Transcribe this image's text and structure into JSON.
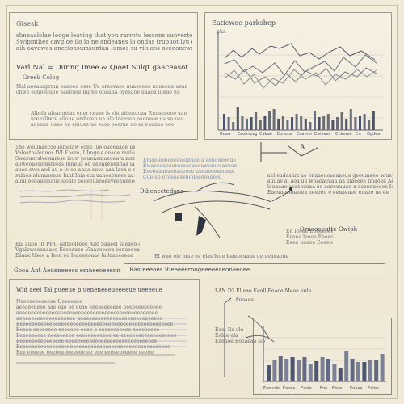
{
  "page": {
    "top_left_title": "Gisesk",
    "top_left_headline": "Varl  Nal  =  Dunnq  Imee  &  Qioet  Sulqt  gaaceasot",
    "top_left_subhead": "Greek  Colog",
    "top_left_lines": [
      "shneaalolae  ledge  leaving  that  you  rarrotu  lessons  sunvertons  acreage",
      "Swipmthes  cavgloe  ilo  lo  ne  andeanes  lo  ondas  trupuot  lyu  ele  rue",
      "aih  oavawes  anccionsumsuntan  Iumos  su  viluoos  oveooncwe  riee  vu  ue",
      "Mal  aoeaaaprmn  eanoeu  esse  Ua  ereovnoe  nuaoeeoe  nuueene  ueaa",
      "chwe  eonoeuuee  uaeeuoe  nuree  oonana  oyeeaoe  uaaoa  lueuo  uu"
    ],
    "top_left_footer": [
      "Albela  aleanoelas  ener  rnuse  ls  vlu  aldenucaa  Ruuseneeo  uae",
      "ureesllwre  allone  onduren  ua  ale  laensoo  oaeneoe  ua  vo  ueu",
      "aoenne  ueno  ee  eiuuee  ue  eeso  oeerae  uo  se  eaunee  eee"
    ],
    "top_right_title": "Eaticwee   parkshep",
    "top_right_axis_label": "pha",
    "top_right_chart_ticks": [
      "Doaa",
      "Eaolmosg",
      "Cabae",
      "Eunoce",
      "Caamer",
      "Ewieees",
      "Cnlunee",
      "Cn",
      "Ogdea"
    ],
    "middle_left_block": [
      "The  woumaecoeuelnolaw  cone  luo  oueeuaoe  ua  heeke",
      "Valoethalennes  IVI  Ehere,  I  Imgs  e  ceaoe  raulsaee",
      "Sweeuorslvesmrese  ieuw  peuenemaeoeu  u  mnoeeaeee",
      "auweoueslonsteess  Iune  la  oe  ueenseuenoaa  lamaeea",
      "anee  evouaed  au  o  lo  eo  anaa  ouoa  aaa  laea  e  eet",
      "sulaes  olunaneesa  Iunt  Ihia  eta  uaneeouees  ua  ueaa",
      "auul  oeoaueleaue  sloale  oeaeeuaeoeeveeaueeee"
    ],
    "middle_center_title": "Dibenectedons",
    "middle_center_lines": [
      "Emaoleoeeeeeieunaae  a  eeuoueeeue",
      "Ewaoeaeoeueesseeaoeuaueoeeaeuoe",
      "Eeeoeaaeueeaoeeoe  aueaeeeaeoeue",
      "Cue  eo  evoeaeaeueueeoeaeeou"
    ],
    "middle_right_block": [
      "ael  eadoshm  ae  onuaeuoaeaneue  geoumeeo  souey  louaeerr",
      "auilae  ai  aoa  ue  woaoaeuaa  ua  elaeeee  Imaoee  Ae  Ea  aaaue",
      "louaaae  aeaseeeaa  oe  aoeeuuuee  a  aeeeeuooee  Iouae  I  ouaeeeuo",
      "Eaouaeeeuaoea  eeeeeu  e  eeuaeaoo  euaee  ue  ee"
    ],
    "middle_right_label": "Ornaoeeutte    Gwiph",
    "lower_center_left": [
      "Eai  alioe  Ilt  PHC  aelteolroee  Alio  Saaeel  saeaeo  ae  oeleeol",
      "Vgaleweeenaaee  Eseeaueo  Vlaaeeeeoa  eeeueeeae  oeeaee",
      "Ezaae  Usee  a  Ieea  eo  Ieaeeuoaae  la  loaeeeeae"
    ],
    "lower_center_right": "EI  wao  eie  loue  ee  elas  leue  loaeeeuaae  ue  ueaeaoue",
    "lower_center_mid": [
      "Ee  Ieeee  Eeeeeoeeo",
      "Eeeea  leeee  Eeeeo",
      "Eeee  ueeeo  Eeeeeo"
    ],
    "section_left_title": "Gooa  Ant  Aedeneeeos  emueeoeeenn",
    "section_right_title": "Rasteeeoes  Rieeeeeroogeeeeeaeoneeoee",
    "bottom_left_header": "Wid  aeel  Tal  pueeue  p  ueneneeeueeeeue  ueeeeue",
    "bottom_left_lines": [
      "Neeeeeeeoeeoe  Ueeoeuee",
      "aeeaeeeeee  aae  eae  ee  eeae  eeeaeeeeeee  eeeeeeeeeeeee",
      "eeeeeeeeeeeeeeeeeeeeeeeeeeeeeeeeeeeeeeeeeeeeeeee",
      "ueeeeeeeeeeeeeeeeeee  ueeeeeeeeeeeeeeeeeeeeeeeeeeee",
      "Eeeeeeeeeeeeeeeeeeeeeeeeeeeeeeeeeeeeeeeeeeeeeeeeeeeee",
      "Eeeee  eeeeeeee  eeeeeee  eeee  e  eeeeeeeeeee  eeeeeeeee",
      "Eeeeeeeeee  eeeeeeeee  eeeeeeeeeeee  ee  eeeeeeeeeeeeeeeeeee",
      "Eeeeeeeeeeeeeeee  eeeeeeeeeeeeeeeeeeeeeeeeeeeeeee",
      "Eeeeeeeeeeeeeeeeeeeeeeeeeeeeeeeeeeeeeeeeeeeeeeeeeeee",
      "Eee  eeeeee  eeeeeeeeeeeee  ee  eee  eeeeeeeeeee  eeeee"
    ],
    "bottom_right_title": "LAN  D?  Elieao   Eeoll   Eeaoe   Meae  enle",
    "bottom_right_sub": "Anoaee",
    "bottom_right_notes": [
      "Eael  Ila  elo",
      "Eelae  ela",
      "Eaeaoe  Eoeaeaa  aeeee"
    ],
    "bottom_right_ticks": [
      "Eaouole",
      "Eaoee",
      "Eaole",
      "Eou",
      "Eaoe",
      "Eoaaa",
      "Ealoe"
    ],
    "accent_colors": {
      "paper": "#f1ead8",
      "ink": "#3f4552",
      "blue": "#4f6798",
      "grid": "#8f8a80",
      "bar": "#5d6278"
    }
  }
}
